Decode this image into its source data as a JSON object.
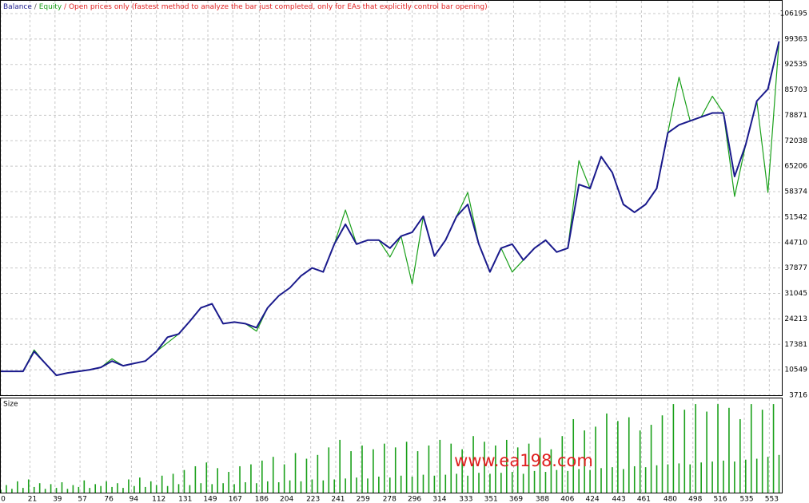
{
  "chart_data": [
    {
      "type": "line",
      "subtitle": "Open prices only (fastest method to analyze the bar just completed, only for EAs that explicitly control bar opening)",
      "separator": "/",
      "x": [
        0,
        8,
        16,
        24,
        32,
        40,
        48,
        56,
        64,
        72,
        80,
        88,
        96,
        104,
        112,
        120,
        128,
        136,
        144,
        152,
        160,
        168,
        176,
        184,
        192,
        200,
        208,
        216,
        224,
        232,
        240,
        248,
        256,
        264,
        272,
        280,
        288,
        296,
        304,
        312,
        320,
        328,
        336,
        344,
        352,
        360,
        368,
        376,
        384,
        392,
        400,
        408,
        416,
        424,
        432,
        440,
        448,
        456,
        464,
        472,
        480,
        488,
        496,
        504,
        512,
        520,
        528,
        536,
        544,
        552,
        560
      ],
      "series": [
        {
          "name": "Balance",
          "color": "#1a1a8c",
          "values": [
            10120,
            10120,
            10120,
            15460,
            12260,
            9050,
            9690,
            10120,
            10550,
            11190,
            12900,
            11620,
            12260,
            12900,
            15460,
            19300,
            20160,
            23570,
            27200,
            28270,
            22930,
            23360,
            22930,
            21860,
            27200,
            30400,
            32540,
            35740,
            37880,
            36810,
            44280,
            49620,
            44280,
            45350,
            45350,
            43210,
            46420,
            47480,
            51750,
            41080,
            45350,
            51750,
            54960,
            44280,
            36810,
            43210,
            44280,
            40010,
            43210,
            45350,
            42150,
            43210,
            60290,
            59230,
            67770,
            63500,
            54960,
            52820,
            54960,
            59230,
            74170,
            76310,
            77370,
            78440,
            79510,
            79510,
            62430,
            70970,
            82710,
            85910,
            98720
          ]
        },
        {
          "name": "Equity",
          "color": "#1aa01a",
          "values": [
            10120,
            10120,
            10120,
            15900,
            12260,
            9050,
            9690,
            10120,
            10550,
            11190,
            13500,
            11620,
            12260,
            12900,
            15460,
            17800,
            20160,
            23570,
            27200,
            28270,
            22930,
            23360,
            22930,
            20900,
            27200,
            30400,
            32540,
            35740,
            37880,
            36810,
            44280,
            53460,
            44280,
            45350,
            45350,
            40800,
            46420,
            33600,
            51750,
            41080,
            45350,
            51750,
            58160,
            44280,
            36810,
            43210,
            36800,
            40010,
            43210,
            45350,
            42150,
            43210,
            66700,
            59230,
            67770,
            63500,
            54960,
            52820,
            54960,
            59230,
            74170,
            89100,
            77370,
            78440,
            84000,
            79510,
            57090,
            70970,
            82710,
            58160,
            98720
          ]
        }
      ],
      "xlim": [
        0,
        562
      ],
      "ylim": [
        3716,
        109620
      ],
      "yticks": [
        106195,
        99363,
        92535,
        85703,
        78871,
        72038,
        65206,
        58374,
        51542,
        44710,
        37877,
        31045,
        24213,
        17381,
        10549,
        3716
      ],
      "grid": true
    },
    {
      "type": "bar",
      "title": "Size",
      "watermark": "www.ea198.com",
      "color": "#1aa01a",
      "x": [
        0,
        4,
        8,
        12,
        16,
        20,
        24,
        28,
        32,
        36,
        40,
        44,
        48,
        52,
        56,
        60,
        64,
        68,
        72,
        76,
        80,
        84,
        88,
        92,
        96,
        100,
        104,
        108,
        112,
        116,
        120,
        124,
        128,
        132,
        136,
        140,
        144,
        148,
        152,
        156,
        160,
        164,
        168,
        172,
        176,
        180,
        184,
        188,
        192,
        196,
        200,
        204,
        208,
        212,
        216,
        220,
        224,
        228,
        232,
        236,
        240,
        244,
        248,
        252,
        256,
        260,
        264,
        268,
        272,
        276,
        280,
        284,
        288,
        292,
        296,
        300,
        304,
        308,
        312,
        316,
        320,
        324,
        328,
        332,
        336,
        340,
        344,
        348,
        352,
        356,
        360,
        364,
        368,
        372,
        376,
        380,
        384,
        388,
        392,
        396,
        400,
        404,
        408,
        412,
        416,
        420,
        424,
        428,
        432,
        436,
        440,
        444,
        448,
        452,
        456,
        460,
        464,
        468,
        472,
        476,
        480,
        484,
        488,
        492,
        496,
        500,
        504,
        508,
        512,
        516,
        520,
        524,
        528,
        532,
        536,
        540,
        544,
        548,
        552,
        556,
        560
      ],
      "values": [
        3,
        8,
        4,
        12,
        5,
        14,
        6,
        10,
        4,
        9,
        5,
        11,
        4,
        8,
        6,
        13,
        5,
        9,
        7,
        12,
        6,
        10,
        5,
        14,
        7,
        16,
        6,
        12,
        8,
        18,
        7,
        20,
        9,
        24,
        8,
        28,
        10,
        32,
        9,
        26,
        10,
        22,
        9,
        28,
        11,
        30,
        10,
        34,
        12,
        38,
        11,
        30,
        13,
        42,
        12,
        36,
        14,
        40,
        13,
        48,
        14,
        56,
        15,
        44,
        16,
        50,
        15,
        46,
        17,
        52,
        16,
        48,
        18,
        54,
        17,
        44,
        19,
        50,
        18,
        56,
        19,
        52,
        20,
        46,
        18,
        60,
        21,
        54,
        20,
        50,
        21,
        56,
        22,
        48,
        20,
        52,
        23,
        58,
        22,
        46,
        24,
        60,
        23,
        78,
        25,
        66,
        24,
        70,
        26,
        84,
        27,
        76,
        25,
        80,
        28,
        66,
        27,
        72,
        29,
        82,
        30,
        94,
        31,
        88,
        30,
        94,
        32,
        86,
        33,
        94,
        34,
        90,
        33,
        78,
        35,
        94,
        36,
        88,
        38,
        94,
        40
      ],
      "xlim": [
        0,
        562
      ],
      "ylim": [
        0,
        100
      ],
      "xticks": [
        0,
        21,
        39,
        57,
        76,
        94,
        112,
        131,
        149,
        167,
        186,
        204,
        223,
        241,
        259,
        278,
        296,
        314,
        333,
        351,
        369,
        388,
        406,
        424,
        443,
        461,
        480,
        498,
        516,
        535,
        553
      ],
      "grid": true
    }
  ]
}
